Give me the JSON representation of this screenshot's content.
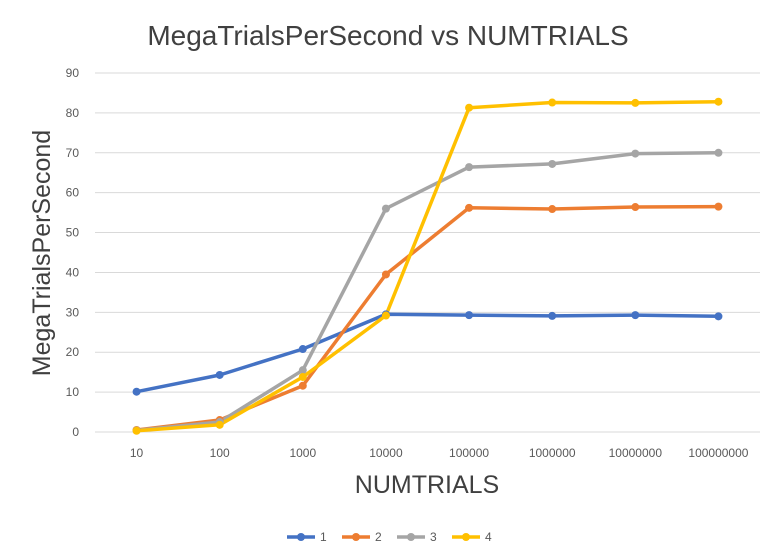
{
  "chart_data": {
    "type": "line",
    "title": "MegaTrialsPerSecond vs NUMTRIALS",
    "xlabel": "NUMTRIALS",
    "ylabel": "MegaTrialsPerSecond",
    "categories": [
      "10",
      "100",
      "1000",
      "10000",
      "100000",
      "1000000",
      "10000000",
      "100000000"
    ],
    "ylim": [
      0,
      90
    ],
    "yticks": [
      0,
      10,
      20,
      30,
      40,
      50,
      60,
      70,
      80,
      90
    ],
    "grid": true,
    "legend_position": "bottom",
    "series": [
      {
        "name": "1",
        "color": "#4472C4",
        "values": [
          10.1,
          14.3,
          20.8,
          29.5,
          29.3,
          29.1,
          29.3,
          29.0
        ]
      },
      {
        "name": "2",
        "color": "#ED7D31",
        "values": [
          0.5,
          3.0,
          11.6,
          39.5,
          56.2,
          55.9,
          56.4,
          56.5
        ]
      },
      {
        "name": "3",
        "color": "#A5A5A5",
        "values": [
          0.4,
          2.5,
          15.5,
          56.0,
          66.4,
          67.2,
          69.8,
          70.0
        ]
      },
      {
        "name": "4",
        "color": "#FFC000",
        "values": [
          0.3,
          1.8,
          13.8,
          29.2,
          81.3,
          82.6,
          82.5,
          82.8
        ]
      }
    ]
  }
}
